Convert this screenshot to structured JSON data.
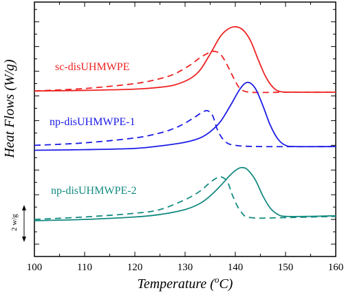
{
  "chart_data": {
    "type": "line",
    "title": "",
    "xlabel_main": "Temperature (",
    "xlabel_sup": "o",
    "xlabel_end": "C)",
    "ylabel": "Heat Flows (W/g)",
    "xlim": [
      100,
      160
    ],
    "x_ticks": [
      100,
      110,
      120,
      130,
      140,
      150,
      160
    ],
    "y_ticks_shown": false,
    "scale_bar_label": "2 w/g",
    "colors": {
      "sc": "#ee2222",
      "np1": "#1a1ae6",
      "np2": "#138a80"
    },
    "series": [
      {
        "name": "sc-disUHMWPE",
        "color": "#ee2222",
        "curves": [
          {
            "style": "solid",
            "x": [
              100,
              110,
              120,
              125,
              128,
              131,
              133,
              135,
              137,
              138.5,
              140,
              141.5,
              143,
              144.5,
              146,
              147.5,
              149,
              152,
              160
            ],
            "y": [
              0.4,
              0.45,
              0.55,
              0.7,
              0.9,
              1.4,
              2.1,
              3.4,
              4.8,
              5.4,
              5.6,
              5.35,
              4.5,
              3.0,
              1.6,
              0.7,
              0.35,
              0.3,
              0.3
            ]
          },
          {
            "style": "dashed",
            "x": [
              100,
              110,
              120,
              125,
              128,
              131,
              133,
              135,
              136,
              137,
              138,
              139,
              140,
              141,
              143,
              150,
              160
            ],
            "y": [
              0.4,
              0.6,
              1.0,
              1.4,
              1.8,
              2.5,
              3.1,
              3.55,
              3.6,
              3.4,
              2.8,
              2.0,
              1.2,
              0.6,
              0.3,
              0.3,
              0.3
            ]
          }
        ]
      },
      {
        "name": "np-disUHMWPE-1",
        "color": "#1a1ae6",
        "curves": [
          {
            "style": "solid",
            "x": [
              100,
              110,
              120,
              125,
              130,
              133,
              135,
              137,
              139,
              141,
              142.5,
              144,
              145.5,
              147,
              148.5,
              150,
              152,
              160
            ],
            "y": [
              -4.4,
              -4.35,
              -4.25,
              -4.05,
              -3.75,
              -3.4,
              -2.9,
              -2.1,
              -0.8,
              0.6,
              1.1,
              0.6,
              -0.8,
              -2.4,
              -3.5,
              -4.0,
              -4.1,
              -4.1
            ]
          },
          {
            "style": "dashed",
            "x": [
              100,
              110,
              120,
              125,
              128,
              130,
              132,
              133.5,
              134.5,
              135.5,
              136.5,
              138,
              140,
              145,
              160
            ],
            "y": [
              -4.0,
              -3.8,
              -3.4,
              -3.0,
              -2.6,
              -2.2,
              -1.7,
              -1.3,
              -1.2,
              -1.6,
              -2.8,
              -3.7,
              -4.0,
              -4.1,
              -4.1
            ]
          }
        ]
      },
      {
        "name": "np-disUHMWPE-2",
        "color": "#138a80",
        "curves": [
          {
            "style": "solid",
            "x": [
              100,
              110,
              120,
              125,
              130,
              133,
              135,
              137,
              139,
              140.5,
              141.5,
              142.5,
              144,
              145.5,
              147,
              148.5,
              150,
              155,
              160
            ],
            "y": [
              -10.1,
              -10.0,
              -9.8,
              -9.6,
              -9.2,
              -8.7,
              -8.1,
              -7.3,
              -6.4,
              -5.9,
              -5.8,
              -6.0,
              -6.8,
              -8.1,
              -9.1,
              -9.6,
              -9.75,
              -9.75,
              -9.7
            ]
          },
          {
            "style": "dashed",
            "x": [
              100,
              110,
              120,
              125,
              130,
              133,
              135,
              136.5,
              137.5,
              138.5,
              139.5,
              141,
              143,
              150,
              160
            ],
            "y": [
              -10.0,
              -9.8,
              -9.5,
              -9.2,
              -8.4,
              -7.7,
              -7.0,
              -6.6,
              -6.6,
              -7.0,
              -8.1,
              -9.3,
              -9.85,
              -9.85,
              -9.75
            ]
          }
        ]
      }
    ]
  }
}
